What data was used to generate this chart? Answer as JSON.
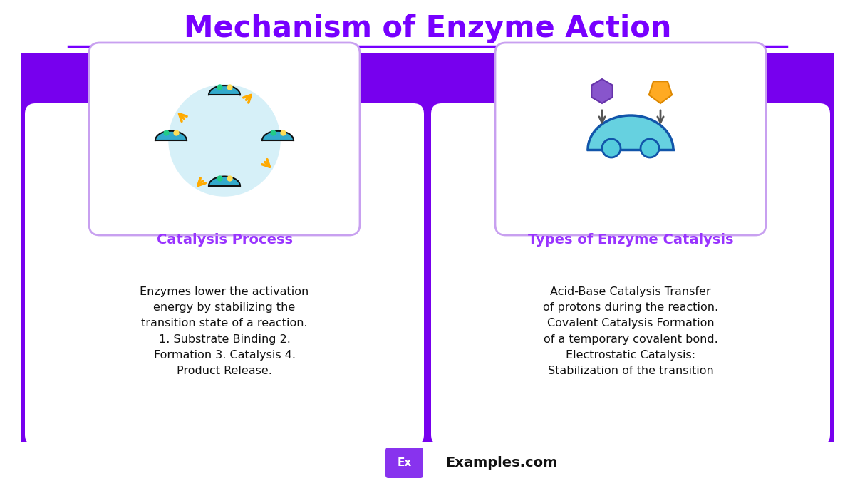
{
  "title": "Mechanism of Enzyme Action",
  "title_color": "#7700ff",
  "bg_color": "#7700ee",
  "card_border": "#c8a0f0",
  "white_bg": "#ffffff",
  "card1_title": "Catalysis Process",
  "card1_title_color": "#9933ff",
  "card1_text": "Enzymes lower the activation\nenergy by stabilizing the\ntransition state of a reaction.\n1. Substrate Binding 2.\nFormation 3. Catalysis 4.\nProduct Release.",
  "card2_title": "Types of Enzyme Catalysis",
  "card2_title_color": "#9933ff",
  "card2_text": "Acid-Base Catalysis Transfer\nof protons during the reaction.\nCovalent Catalysis Formation\nof a temporary covalent bond.\nElectrostatic Catalysis:\nStabilization of the transition",
  "footer_text": "Examples.com",
  "footer_ex_bg": "#8833ee",
  "footer_ex_text": "Ex",
  "icon_circle_bg": "#d6f0f8",
  "icon_enzyme_color": "#33aacc",
  "icon_substrate_color": "#22cc88",
  "arrow_color": "#ffaa00"
}
